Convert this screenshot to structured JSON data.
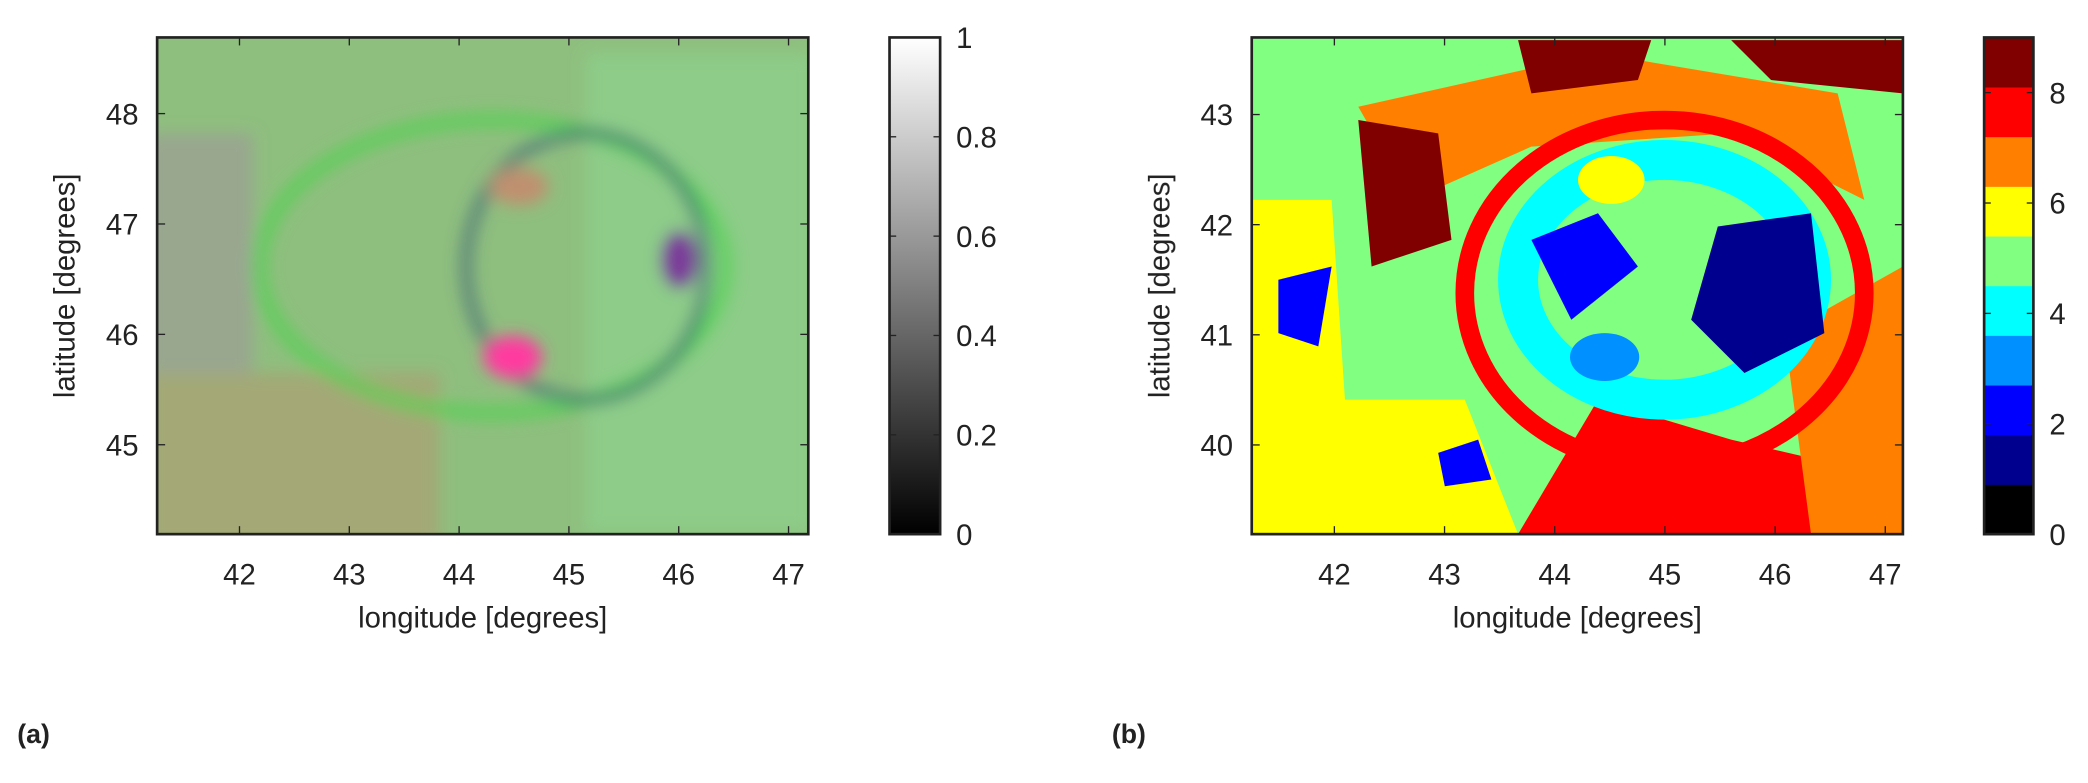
{
  "chart_data": [
    {
      "type": "image",
      "panel_label": "(a)",
      "xlabel": "longitude [degrees]",
      "ylabel": "latitude [degrees]",
      "xlim": [
        41.25,
        47.18
      ],
      "xticks": [
        42,
        43,
        44,
        45,
        46,
        47
      ],
      "ylim": [
        44.19,
        48.69
      ],
      "yticks": [
        45,
        46,
        47,
        48
      ],
      "colorbar": {
        "lim": [
          0,
          1
        ],
        "ticks": [
          0,
          0.2,
          0.4,
          0.6,
          0.8,
          1
        ],
        "colormap": "gray"
      }
    },
    {
      "type": "image",
      "panel_label": "(b)",
      "xlabel": "longitude [degrees]",
      "ylabel": "latitude [degrees]",
      "xlim": [
        41.25,
        47.16
      ],
      "xticks": [
        42,
        43,
        44,
        45,
        46,
        47
      ],
      "ylim": [
        39.19,
        43.7
      ],
      "yticks": [
        40,
        41,
        42,
        43
      ],
      "colorbar": {
        "lim": [
          0,
          9
        ],
        "ticks": [
          0,
          2,
          4,
          6,
          8
        ],
        "colors": [
          "#000000",
          "#00008f",
          "#0000ff",
          "#0090ff",
          "#00ffff",
          "#80ff80",
          "#ffff00",
          "#ff8000",
          "#ff0000",
          "#800000"
        ]
      }
    }
  ]
}
